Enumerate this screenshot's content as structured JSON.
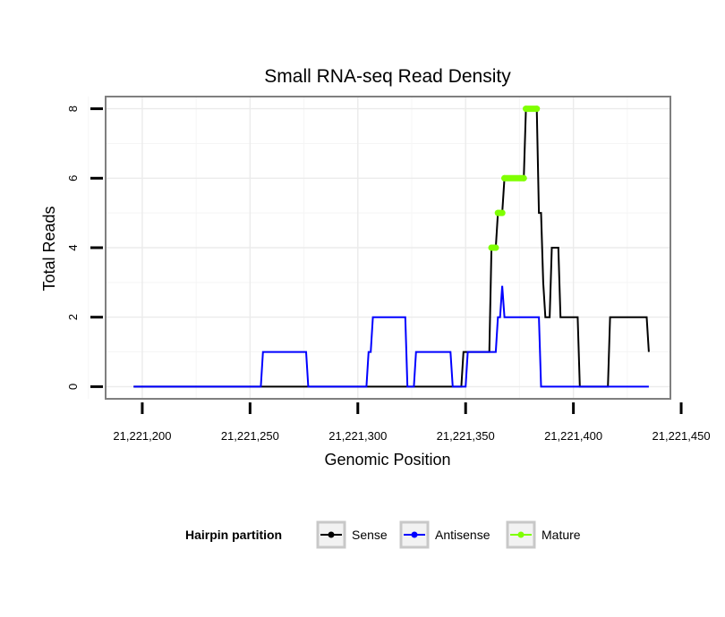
{
  "chart_data": {
    "type": "line",
    "title": "Small RNA-seq Read Density",
    "xlabel": "Genomic Position",
    "ylabel": "Total Reads",
    "xlim": [
      21221183,
      21221445
    ],
    "ylim": [
      -0.35,
      8.35
    ],
    "x_ticks": [
      21221200,
      21221250,
      21221300,
      21221350,
      21221400,
      21221450
    ],
    "x_tick_labels": [
      "21,221,200",
      "21,221,250",
      "21,221,300",
      "21,221,350",
      "21,221,400",
      "21,221,450"
    ],
    "y_ticks": [
      0,
      2,
      4,
      6,
      8
    ],
    "y_tick_labels": [
      "0",
      "2",
      "4",
      "6",
      "8"
    ],
    "grid": true,
    "legend": {
      "title": "Hairpin partition",
      "position": "bottom",
      "entries": [
        {
          "name": "Sense",
          "color": "#000000"
        },
        {
          "name": "Antisense",
          "color": "#0000ff"
        },
        {
          "name": "Mature",
          "color": "#7fff00"
        }
      ]
    },
    "series": [
      {
        "name": "Sense",
        "color": "#000000",
        "points": [
          [
            21221196,
            0
          ],
          [
            21221348,
            0
          ],
          [
            21221349,
            1
          ],
          [
            21221361,
            1
          ],
          [
            21221362,
            4
          ],
          [
            21221364,
            4
          ],
          [
            21221365,
            5
          ],
          [
            21221367,
            5
          ],
          [
            21221368,
            6
          ],
          [
            21221377,
            6
          ],
          [
            21221378,
            8
          ],
          [
            21221383,
            8
          ],
          [
            21221384,
            5
          ],
          [
            21221385,
            5
          ],
          [
            21221386,
            3
          ],
          [
            21221387,
            2
          ],
          [
            21221389,
            2
          ],
          [
            21221390,
            4
          ],
          [
            21221393,
            4
          ],
          [
            21221394,
            2
          ],
          [
            21221402,
            2
          ],
          [
            21221403,
            0
          ],
          [
            21221416,
            0
          ],
          [
            21221417,
            2
          ],
          [
            21221434,
            2
          ],
          [
            21221435,
            1
          ]
        ]
      },
      {
        "name": "Antisense",
        "color": "#0000ff",
        "points": [
          [
            21221196,
            0
          ],
          [
            21221255,
            0
          ],
          [
            21221256,
            1
          ],
          [
            21221276,
            1
          ],
          [
            21221277,
            0
          ],
          [
            21221304,
            0
          ],
          [
            21221305,
            1
          ],
          [
            21221306,
            1
          ],
          [
            21221307,
            2
          ],
          [
            21221322,
            2
          ],
          [
            21221323,
            0
          ],
          [
            21221326,
            0
          ],
          [
            21221327,
            1
          ],
          [
            21221343,
            1
          ],
          [
            21221344,
            0
          ],
          [
            21221350,
            0
          ],
          [
            21221351,
            1
          ],
          [
            21221364,
            1
          ],
          [
            21221365,
            2
          ],
          [
            21221366,
            2
          ],
          [
            21221367,
            2.9
          ],
          [
            21221368,
            2
          ],
          [
            21221384,
            2
          ],
          [
            21221385,
            0
          ],
          [
            21221435,
            0
          ]
        ]
      },
      {
        "name": "Mature",
        "color": "#7fff00",
        "segments": [
          [
            [
              21221362,
              4
            ],
            [
              21221364,
              4
            ]
          ],
          [
            [
              21221365,
              5
            ],
            [
              21221367,
              5
            ]
          ],
          [
            [
              21221368,
              6
            ],
            [
              21221377,
              6
            ]
          ],
          [
            [
              21221378,
              8
            ],
            [
              21221383,
              8
            ]
          ]
        ]
      }
    ]
  }
}
